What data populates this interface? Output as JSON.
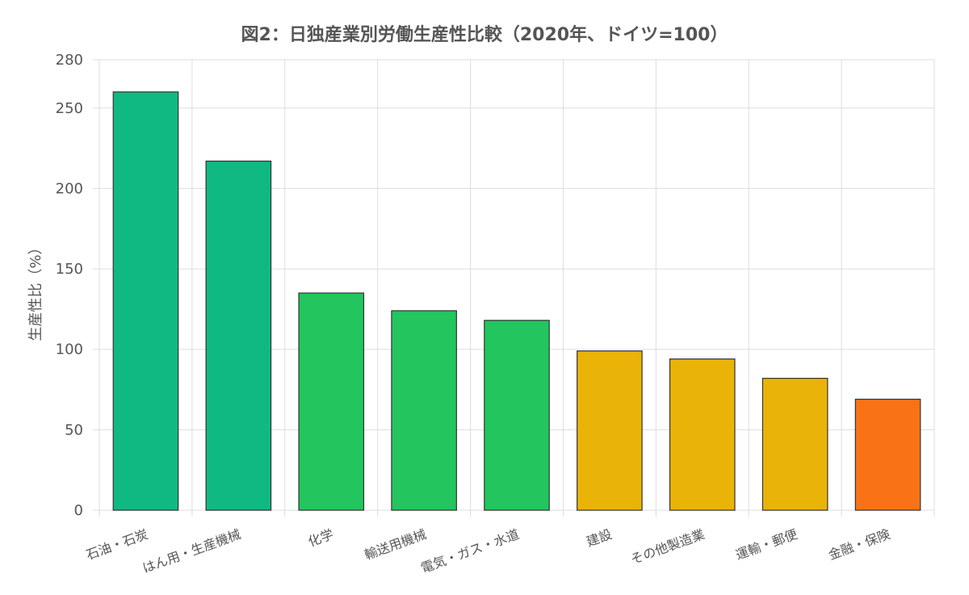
{
  "chart_data": {
    "type": "bar",
    "title": "図2：日独産業別労働生産性比較（2020年、ドイツ=100）",
    "ylabel": "生産性比（%）",
    "xlabel": "",
    "ylim": [
      0,
      280
    ],
    "yticks": [
      0,
      50,
      100,
      150,
      200,
      250,
      280
    ],
    "grid": true,
    "legend": "none",
    "categories": [
      "石油・石炭",
      "はん用・生産機械",
      "化学",
      "輸送用機械",
      "電気・ガス・水道",
      "建設",
      "その他製造業",
      "運輸・郵便",
      "金融・保険"
    ],
    "values": [
      260,
      217,
      135,
      124,
      118,
      99,
      94,
      82,
      69
    ],
    "colors": [
      "#10b981",
      "#10b981",
      "#22c55e",
      "#22c55e",
      "#22c55e",
      "#eab308",
      "#eab308",
      "#eab308",
      "#f97316"
    ]
  }
}
